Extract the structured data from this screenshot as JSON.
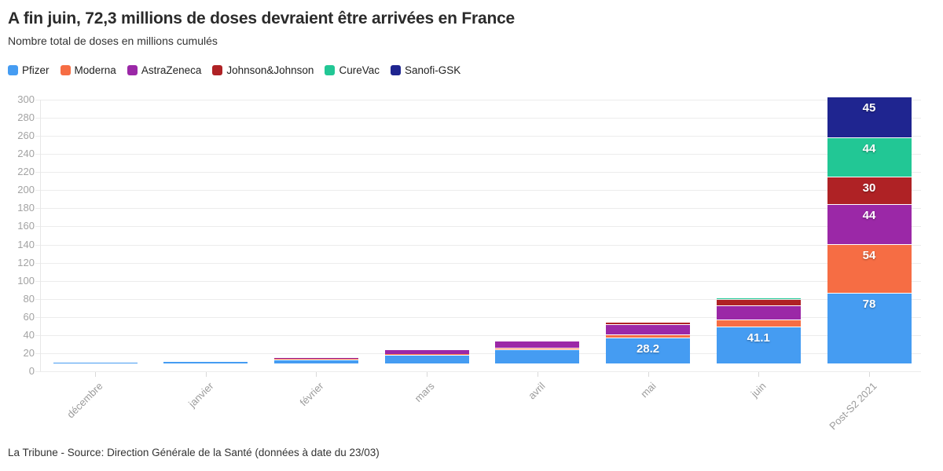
{
  "header": {
    "title": "A fin juin, 72,3 millions de doses devraient être arrivées en France",
    "subtitle": "Nombre total de doses en millions cumulés"
  },
  "footer": {
    "source": "La Tribune - Source: Direction Générale de la Santé (données à date du 23/03)"
  },
  "chart_data": {
    "type": "bar",
    "stacked": true,
    "title": "A fin juin, 72,3 millions de doses devraient être arrivées en France",
    "subtitle": "Nombre total de doses en millions cumulés",
    "categories": [
      "décembre",
      "janvier",
      "février",
      "mars",
      "avril",
      "mai",
      "juin",
      "Post-S2 2021"
    ],
    "series": [
      {
        "name": "Pfizer",
        "color": "#459cf2",
        "values": [
          1.2,
          2.3,
          4.6,
          9.2,
          15.8,
          28.2,
          41.1,
          78
        ]
      },
      {
        "name": "Moderna",
        "color": "#f66d44",
        "values": [
          0,
          0,
          0.4,
          1.4,
          1.8,
          4.0,
          7.2,
          54
        ]
      },
      {
        "name": "AstraZeneca",
        "color": "#9b28a7",
        "values": [
          0,
          0,
          2.2,
          5.4,
          7.6,
          11.5,
          15.7,
          44
        ]
      },
      {
        "name": "Johnson&Johnson",
        "color": "#af2225",
        "values": [
          0,
          0,
          0,
          0,
          0,
          1.8,
          7.3,
          30
        ]
      },
      {
        "name": "CureVac",
        "color": "#22c795",
        "values": [
          0,
          0,
          0,
          0,
          0,
          0,
          1.0,
          44
        ]
      },
      {
        "name": "Sanofi-GSK",
        "color": "#1f2590",
        "values": [
          0,
          0,
          0,
          0,
          0,
          0,
          0,
          45
        ]
      }
    ],
    "value_labels": [
      {
        "category": "mai",
        "series": "Pfizer",
        "text": "28.2"
      },
      {
        "category": "juin",
        "series": "Pfizer",
        "text": "41.1"
      },
      {
        "category": "Post-S2 2021",
        "series": "Pfizer",
        "text": "78"
      },
      {
        "category": "Post-S2 2021",
        "series": "Moderna",
        "text": "54"
      },
      {
        "category": "Post-S2 2021",
        "series": "AstraZeneca",
        "text": "44"
      },
      {
        "category": "Post-S2 2021",
        "series": "Johnson&Johnson",
        "text": "30"
      },
      {
        "category": "Post-S2 2021",
        "series": "CureVac",
        "text": "44"
      },
      {
        "category": "Post-S2 2021",
        "series": "Sanofi-GSK",
        "text": "45"
      }
    ],
    "ylabel": "",
    "xlabel": "",
    "ylim": [
      0,
      300
    ],
    "ytick_step": 20,
    "grid": true,
    "legend_position": "top"
  }
}
